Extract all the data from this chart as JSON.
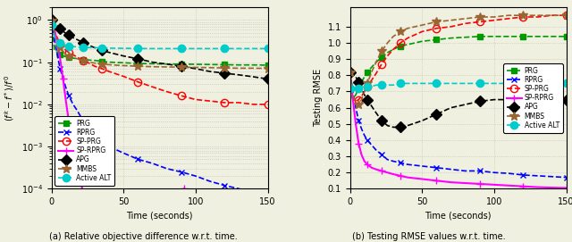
{
  "fig_width": 6.4,
  "fig_height": 2.71,
  "dpi": 100,
  "bg_color": "#f0f0e0",
  "left_title": "(a) Relative objective difference w.r.t. time.",
  "right_title": "(b) Testing RMSE values w.r.t. time.",
  "left_ylabel": "$(f^k - f^*)/f^0$",
  "right_ylabel": "Testing RMSE",
  "xlabel": "Time (seconds)",
  "xlim": [
    0,
    150
  ],
  "left_ylim": [
    0.0001,
    2.0
  ],
  "right_ylim": [
    0.1,
    1.22
  ],
  "methods": [
    "PRG",
    "RPRG",
    "SP-PRG",
    "SP-RPRG",
    "APG",
    "MMBS",
    "Active ALT"
  ],
  "colors": [
    "#009900",
    "#0000ff",
    "#ff0000",
    "#ff00ff",
    "#000000",
    "#996633",
    "#00cccc"
  ],
  "linestyles": [
    "--",
    "--",
    "--",
    "-",
    "--",
    "--",
    "--"
  ],
  "markers": [
    "s",
    "x",
    "o",
    "+",
    "D",
    "*",
    "o"
  ],
  "markersizes": [
    5,
    5,
    6,
    6,
    6,
    7,
    6
  ],
  "markerfacecolors_left": [
    "#009900",
    "none",
    "none",
    "#ff00ff",
    "#000000",
    "#996633",
    "#00cccc"
  ],
  "markerfacecolors_right": [
    "#009900",
    "none",
    "none",
    "#ff00ff",
    "#000000",
    "#996633",
    "#00cccc"
  ],
  "linewidths": [
    1.2,
    1.2,
    1.2,
    1.5,
    1.2,
    1.2,
    1.2
  ],
  "left_data": {
    "PRG": {
      "t": [
        0,
        2,
        4,
        6,
        8,
        10,
        12,
        15,
        18,
        22,
        26,
        30,
        35,
        40,
        50,
        60,
        70,
        80,
        90,
        100,
        110,
        120,
        130,
        140,
        150
      ],
      "v": [
        0.95,
        0.2,
        0.17,
        0.15,
        0.14,
        0.135,
        0.13,
        0.125,
        0.12,
        0.115,
        0.112,
        0.11,
        0.105,
        0.1,
        0.097,
        0.093,
        0.092,
        0.09,
        0.09,
        0.089,
        0.088,
        0.087,
        0.086,
        0.086,
        0.085
      ]
    },
    "RPRG": {
      "t": [
        0,
        2,
        4,
        6,
        8,
        10,
        12,
        15,
        18,
        22,
        26,
        30,
        35,
        40,
        50,
        60,
        70,
        80,
        90,
        100,
        110,
        120,
        130,
        140,
        150
      ],
      "v": [
        0.9,
        0.35,
        0.15,
        0.07,
        0.04,
        0.025,
        0.016,
        0.01,
        0.007,
        0.004,
        0.003,
        0.002,
        0.0015,
        0.001,
        0.0007,
        0.0005,
        0.0004,
        0.0003,
        0.00025,
        0.0002,
        0.00015,
        0.00012,
        0.0001,
        8e-05,
        6e-05
      ]
    },
    "SP-PRG": {
      "t": [
        0,
        2,
        4,
        6,
        8,
        10,
        12,
        15,
        18,
        22,
        26,
        30,
        35,
        40,
        50,
        60,
        70,
        80,
        90,
        100,
        110,
        120,
        130,
        140,
        150
      ],
      "v": [
        0.95,
        0.55,
        0.38,
        0.27,
        0.22,
        0.19,
        0.17,
        0.15,
        0.13,
        0.11,
        0.095,
        0.08,
        0.07,
        0.06,
        0.046,
        0.034,
        0.026,
        0.02,
        0.016,
        0.013,
        0.012,
        0.011,
        0.011,
        0.01,
        0.01
      ]
    },
    "SP-RPRG": {
      "t": [
        0,
        2,
        4,
        6,
        8,
        10,
        12,
        15,
        18,
        22,
        26,
        30,
        35,
        40,
        45,
        50,
        55,
        60,
        65,
        70,
        75,
        80,
        85,
        90,
        92
      ],
      "v": [
        0.95,
        0.6,
        0.3,
        0.12,
        0.04,
        0.012,
        0.004,
        0.001,
        0.0003,
        8e-05,
        3e-05,
        1e-05,
        5e-06,
        2e-06,
        1e-06,
        8e-07,
        6e-07,
        4e-07,
        3e-07,
        2e-07,
        1.5e-07,
        1e-07,
        8e-08,
        1e-05,
        0.0001
      ]
    },
    "APG": {
      "t": [
        0,
        2,
        4,
        6,
        8,
        10,
        12,
        15,
        18,
        22,
        26,
        30,
        35,
        40,
        50,
        60,
        70,
        80,
        90,
        100,
        110,
        120,
        130,
        140,
        150
      ],
      "v": [
        1.0,
        0.85,
        0.72,
        0.62,
        0.54,
        0.48,
        0.44,
        0.38,
        0.34,
        0.29,
        0.25,
        0.22,
        0.19,
        0.17,
        0.14,
        0.12,
        0.1,
        0.09,
        0.08,
        0.07,
        0.06,
        0.055,
        0.05,
        0.045,
        0.04
      ]
    },
    "MMBS": {
      "t": [
        0,
        2,
        4,
        6,
        8,
        10,
        12,
        15,
        18,
        22,
        26,
        30,
        35,
        40,
        50,
        60,
        70,
        80,
        90,
        100,
        110,
        120,
        130,
        140,
        150
      ],
      "v": [
        0.95,
        0.5,
        0.3,
        0.22,
        0.18,
        0.155,
        0.14,
        0.13,
        0.12,
        0.11,
        0.1,
        0.095,
        0.09,
        0.087,
        0.083,
        0.08,
        0.078,
        0.077,
        0.076,
        0.075,
        0.074,
        0.073,
        0.072,
        0.072,
        0.071
      ]
    },
    "Active ALT": {
      "t": [
        0,
        2,
        4,
        6,
        8,
        10,
        12,
        15,
        18,
        22,
        26,
        30,
        35,
        40,
        50,
        60,
        70,
        80,
        90,
        100,
        110,
        120,
        130,
        140,
        150
      ],
      "v": [
        0.75,
        0.4,
        0.32,
        0.28,
        0.26,
        0.25,
        0.24,
        0.235,
        0.23,
        0.225,
        0.222,
        0.22,
        0.218,
        0.215,
        0.213,
        0.211,
        0.21,
        0.21,
        0.21,
        0.21,
        0.21,
        0.21,
        0.21,
        0.21,
        0.21
      ]
    }
  },
  "right_data": {
    "PRG": {
      "t": [
        0,
        2,
        4,
        6,
        8,
        10,
        12,
        15,
        18,
        22,
        26,
        30,
        35,
        40,
        50,
        60,
        70,
        80,
        90,
        100,
        110,
        120,
        130,
        140,
        150
      ],
      "v": [
        0.82,
        0.65,
        0.68,
        0.72,
        0.76,
        0.79,
        0.82,
        0.85,
        0.88,
        0.91,
        0.94,
        0.96,
        0.98,
        0.99,
        1.01,
        1.02,
        1.03,
        1.035,
        1.04,
        1.04,
        1.04,
        1.04,
        1.04,
        1.04,
        1.04
      ]
    },
    "RPRG": {
      "t": [
        0,
        2,
        4,
        6,
        8,
        10,
        12,
        15,
        18,
        22,
        26,
        30,
        35,
        40,
        50,
        60,
        70,
        80,
        90,
        100,
        110,
        120,
        130,
        140,
        150
      ],
      "v": [
        0.82,
        0.7,
        0.6,
        0.52,
        0.47,
        0.43,
        0.4,
        0.37,
        0.34,
        0.31,
        0.28,
        0.27,
        0.26,
        0.25,
        0.24,
        0.23,
        0.22,
        0.21,
        0.21,
        0.2,
        0.195,
        0.185,
        0.18,
        0.175,
        0.17
      ]
    },
    "SP-PRG": {
      "t": [
        0,
        2,
        4,
        6,
        8,
        10,
        12,
        15,
        18,
        22,
        26,
        30,
        35,
        40,
        50,
        60,
        70,
        80,
        90,
        100,
        110,
        120,
        130,
        140,
        150
      ],
      "v": [
        0.82,
        0.65,
        0.64,
        0.65,
        0.67,
        0.7,
        0.73,
        0.77,
        0.81,
        0.87,
        0.92,
        0.96,
        1.0,
        1.03,
        1.07,
        1.09,
        1.1,
        1.12,
        1.13,
        1.14,
        1.15,
        1.16,
        1.16,
        1.17,
        1.17
      ]
    },
    "SP-RPRG": {
      "t": [
        0,
        2,
        4,
        6,
        8,
        10,
        12,
        15,
        18,
        22,
        26,
        30,
        35,
        40,
        50,
        60,
        70,
        80,
        90,
        100,
        110,
        120,
        130,
        140,
        150
      ],
      "v": [
        0.82,
        0.65,
        0.5,
        0.38,
        0.31,
        0.27,
        0.25,
        0.23,
        0.22,
        0.21,
        0.2,
        0.19,
        0.18,
        0.17,
        0.16,
        0.15,
        0.14,
        0.135,
        0.13,
        0.125,
        0.12,
        0.115,
        0.11,
        0.107,
        0.105
      ]
    },
    "APG": {
      "t": [
        0,
        2,
        4,
        6,
        8,
        10,
        12,
        15,
        18,
        22,
        26,
        30,
        35,
        40,
        50,
        60,
        70,
        80,
        90,
        100,
        110,
        120,
        130,
        140,
        150
      ],
      "v": [
        0.82,
        0.81,
        0.79,
        0.76,
        0.72,
        0.68,
        0.65,
        0.61,
        0.57,
        0.52,
        0.49,
        0.48,
        0.48,
        0.49,
        0.52,
        0.56,
        0.6,
        0.62,
        0.64,
        0.65,
        0.65,
        0.65,
        0.65,
        0.65,
        0.65
      ]
    },
    "MMBS": {
      "t": [
        0,
        2,
        4,
        6,
        8,
        10,
        12,
        15,
        18,
        22,
        26,
        30,
        35,
        40,
        50,
        60,
        70,
        80,
        90,
        100,
        110,
        120,
        130,
        140,
        150
      ],
      "v": [
        0.82,
        0.68,
        0.62,
        0.62,
        0.65,
        0.7,
        0.75,
        0.82,
        0.88,
        0.95,
        1.0,
        1.04,
        1.07,
        1.09,
        1.11,
        1.13,
        1.14,
        1.15,
        1.16,
        1.16,
        1.17,
        1.17,
        1.17,
        1.17,
        1.17
      ]
    },
    "Active ALT": {
      "t": [
        0,
        2,
        4,
        6,
        8,
        10,
        12,
        15,
        18,
        22,
        26,
        30,
        35,
        40,
        50,
        60,
        70,
        80,
        90,
        100,
        110,
        120,
        130,
        140,
        150
      ],
      "v": [
        0.72,
        0.72,
        0.72,
        0.72,
        0.73,
        0.73,
        0.73,
        0.73,
        0.74,
        0.74,
        0.74,
        0.74,
        0.75,
        0.75,
        0.75,
        0.75,
        0.75,
        0.75,
        0.75,
        0.75,
        0.75,
        0.75,
        0.75,
        0.75,
        0.75
      ]
    }
  },
  "grid_color": "#999999",
  "grid_alpha": 0.6,
  "grid_linestyle": ":"
}
